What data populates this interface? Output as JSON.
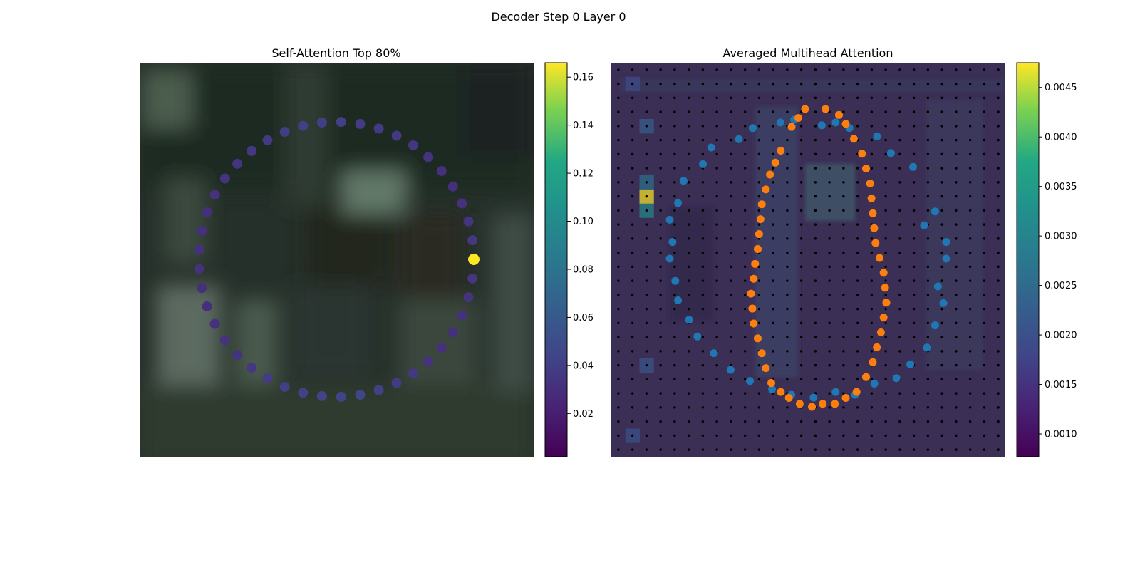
{
  "figure": {
    "title": "Decoder Step 0 Layer 0"
  },
  "chart_data": [
    {
      "type": "scatter",
      "title": "Self-Attention Top 80%",
      "background": "blurred photograph of a dark green scene",
      "colormap": "viridis",
      "colorbar": {
        "ticks": [
          "0.02",
          "0.04",
          "0.06",
          "0.08",
          "0.10",
          "0.12",
          "0.14",
          "0.16"
        ],
        "range": [
          0.002,
          0.166
        ]
      },
      "series": [
        {
          "marker": "circle",
          "points": [
            {
              "angle_deg": 0,
              "value": 0.166
            },
            {
              "angle_deg": 8,
              "value": 0.035
            },
            {
              "angle_deg": 16,
              "value": 0.033
            },
            {
              "angle_deg": 24,
              "value": 0.031
            },
            {
              "angle_deg": 32,
              "value": 0.03
            },
            {
              "angle_deg": 40,
              "value": 0.03
            },
            {
              "angle_deg": 48,
              "value": 0.032
            },
            {
              "angle_deg": 56,
              "value": 0.034
            },
            {
              "angle_deg": 64,
              "value": 0.036
            },
            {
              "angle_deg": 72,
              "value": 0.037
            },
            {
              "angle_deg": 80,
              "value": 0.038
            },
            {
              "angle_deg": 88,
              "value": 0.04
            },
            {
              "angle_deg": 96,
              "value": 0.04
            },
            {
              "angle_deg": 104,
              "value": 0.04
            },
            {
              "angle_deg": 112,
              "value": 0.039
            },
            {
              "angle_deg": 120,
              "value": 0.037
            },
            {
              "angle_deg": 128,
              "value": 0.035
            },
            {
              "angle_deg": 136,
              "value": 0.033
            },
            {
              "angle_deg": 144,
              "value": 0.032
            },
            {
              "angle_deg": 152,
              "value": 0.031
            },
            {
              "angle_deg": 160,
              "value": 0.03
            },
            {
              "angle_deg": 168,
              "value": 0.03
            },
            {
              "angle_deg": 176,
              "value": 0.031
            },
            {
              "angle_deg": 184,
              "value": 0.031
            },
            {
              "angle_deg": 192,
              "value": 0.03
            },
            {
              "angle_deg": 200,
              "value": 0.03
            },
            {
              "angle_deg": 208,
              "value": 0.031
            },
            {
              "angle_deg": 216,
              "value": 0.032
            },
            {
              "angle_deg": 224,
              "value": 0.033
            },
            {
              "angle_deg": 232,
              "value": 0.035
            },
            {
              "angle_deg": 240,
              "value": 0.038
            },
            {
              "angle_deg": 248,
              "value": 0.04
            },
            {
              "angle_deg": 256,
              "value": 0.042
            },
            {
              "angle_deg": 264,
              "value": 0.043
            },
            {
              "angle_deg": 272,
              "value": 0.044
            },
            {
              "angle_deg": 280,
              "value": 0.045
            },
            {
              "angle_deg": 288,
              "value": 0.042
            },
            {
              "angle_deg": 296,
              "value": 0.037
            },
            {
              "angle_deg": 304,
              "value": 0.035
            },
            {
              "angle_deg": 312,
              "value": 0.033
            },
            {
              "angle_deg": 320,
              "value": 0.031
            },
            {
              "angle_deg": 328,
              "value": 0.03
            },
            {
              "angle_deg": 336,
              "value": 0.031
            },
            {
              "angle_deg": 344,
              "value": 0.033
            },
            {
              "angle_deg": 352,
              "value": 0.034
            }
          ]
        }
      ]
    },
    {
      "type": "heatmap",
      "title": "Averaged Multihead Attention",
      "grid": {
        "rows": 28,
        "cols": 28
      },
      "colormap": "viridis",
      "colorbar": {
        "ticks": [
          "0.0010",
          "0.0015",
          "0.0020",
          "0.0025",
          "0.0030",
          "0.0035",
          "0.0040",
          "0.0045"
        ],
        "range": [
          0.00077,
          0.00475
        ]
      },
      "background_value": 0.0011,
      "hot_cells": [
        {
          "col": 2,
          "row": 9,
          "value": 0.00475
        },
        {
          "col": 2,
          "row": 10,
          "value": 0.0031
        },
        {
          "col": 2,
          "row": 8,
          "value": 0.0026
        },
        {
          "col": 2,
          "row": 4,
          "value": 0.0023
        },
        {
          "col": 2,
          "row": 21,
          "value": 0.0021
        },
        {
          "col": 1,
          "row": 26,
          "value": 0.002
        },
        {
          "col": 1,
          "row": 1,
          "value": 0.0019
        }
      ],
      "series": [
        {
          "color": "#1f77b4",
          "points": [
            [
              1.0,
              0.5
            ],
            [
              0.96,
              0.33
            ],
            [
              0.88,
              0.17
            ],
            [
              0.75,
              0.06
            ],
            [
              0.6,
              0.01
            ],
            [
              0.45,
              0.0
            ],
            [
              0.3,
              0.03
            ],
            [
              0.15,
              0.1
            ],
            [
              0.05,
              0.22
            ],
            [
              0.0,
              0.36
            ],
            [
              0.0,
              0.5
            ],
            [
              0.03,
              0.65
            ],
            [
              0.1,
              0.78
            ],
            [
              0.22,
              0.9
            ],
            [
              0.37,
              0.97
            ],
            [
              0.52,
              1.0
            ],
            [
              0.67,
              0.99
            ],
            [
              0.82,
              0.93
            ],
            [
              0.93,
              0.82
            ],
            [
              0.99,
              0.66
            ],
            [
              0.97,
              0.6
            ],
            [
              0.92,
              0.38
            ],
            [
              0.8,
              0.12
            ],
            [
              0.65,
              0.03
            ],
            [
              0.55,
              0.02
            ],
            [
              0.4,
              0.01
            ],
            [
              0.25,
              0.07
            ],
            [
              0.12,
              0.16
            ],
            [
              0.03,
              0.3
            ],
            [
              0.01,
              0.44
            ],
            [
              0.02,
              0.58
            ],
            [
              0.07,
              0.72
            ],
            [
              0.16,
              0.84
            ],
            [
              0.29,
              0.94
            ],
            [
              0.44,
              0.99
            ],
            [
              0.6,
              0.98
            ],
            [
              0.74,
              0.95
            ],
            [
              0.87,
              0.88
            ],
            [
              0.96,
              0.74
            ],
            [
              1.0,
              0.44
            ]
          ]
        },
        {
          "color": "#ff7f0e",
          "points": [
            [
              0.4,
              0.0
            ],
            [
              0.55,
              0.0
            ],
            [
              0.7,
              0.05
            ],
            [
              0.82,
              0.15
            ],
            [
              0.88,
              0.25
            ],
            [
              0.9,
              0.35
            ],
            [
              0.92,
              0.45
            ],
            [
              0.98,
              0.55
            ],
            [
              1.0,
              0.65
            ],
            [
              0.96,
              0.75
            ],
            [
              0.9,
              0.85
            ],
            [
              0.78,
              0.95
            ],
            [
              0.62,
              0.99
            ],
            [
              0.45,
              1.0
            ],
            [
              0.28,
              0.97
            ],
            [
              0.15,
              0.92
            ],
            [
              0.08,
              0.82
            ],
            [
              0.02,
              0.72
            ],
            [
              0.0,
              0.62
            ],
            [
              0.03,
              0.52
            ],
            [
              0.06,
              0.42
            ],
            [
              0.08,
              0.32
            ],
            [
              0.14,
              0.22
            ],
            [
              0.22,
              0.14
            ],
            [
              0.3,
              0.06
            ],
            [
              0.35,
              0.03
            ],
            [
              0.65,
              0.02
            ],
            [
              0.76,
              0.1
            ],
            [
              0.85,
              0.2
            ],
            [
              0.89,
              0.3
            ],
            [
              0.91,
              0.4
            ],
            [
              0.95,
              0.5
            ],
            [
              0.99,
              0.6
            ],
            [
              0.98,
              0.7
            ],
            [
              0.93,
              0.8
            ],
            [
              0.85,
              0.9
            ],
            [
              0.7,
              0.97
            ],
            [
              0.53,
              0.99
            ],
            [
              0.36,
              0.99
            ],
            [
              0.22,
              0.95
            ],
            [
              0.11,
              0.87
            ],
            [
              0.05,
              0.77
            ],
            [
              0.01,
              0.67
            ],
            [
              0.02,
              0.57
            ],
            [
              0.05,
              0.47
            ],
            [
              0.07,
              0.37
            ],
            [
              0.11,
              0.27
            ],
            [
              0.18,
              0.18
            ]
          ]
        }
      ]
    }
  ]
}
